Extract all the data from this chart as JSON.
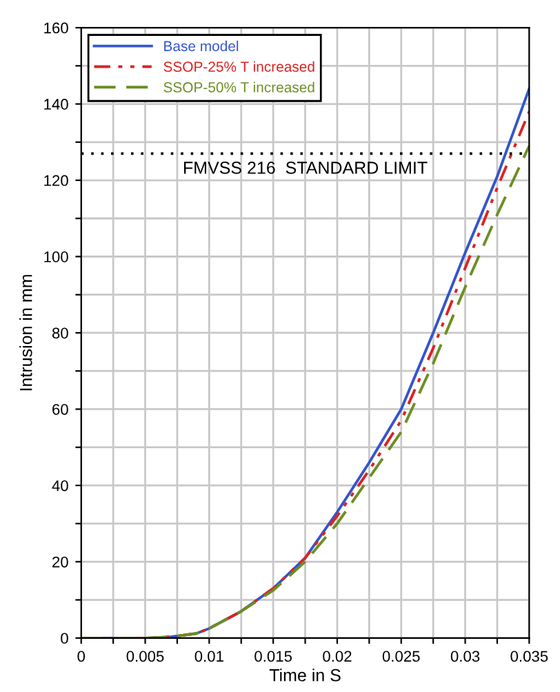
{
  "chart_data": {
    "type": "line",
    "xlabel": "Time in S",
    "ylabel": "Intrusion in mm",
    "x": [
      0,
      0.005,
      0.007,
      0.009,
      0.01,
      0.0125,
      0.015,
      0.0175,
      0.02,
      0.0225,
      0.025,
      0.0275,
      0.03,
      0.0325,
      0.035
    ],
    "series": [
      {
        "name": "Base model",
        "color": "#3355cc",
        "line_style": "solid",
        "values": [
          0,
          0,
          0.3,
          1.2,
          2.5,
          7,
          13,
          21,
          33,
          46,
          60,
          80,
          101,
          121,
          144
        ]
      },
      {
        "name": "SSOP-25% T increased",
        "color": "#dd2222",
        "line_style": "dashdot",
        "values": [
          0,
          0,
          0.3,
          1.2,
          2.5,
          7,
          13,
          21,
          32,
          44,
          57,
          76,
          97,
          118,
          138
        ]
      },
      {
        "name": "SSOP-50% T increased",
        "color": "#6b8e23",
        "line_style": "dashed",
        "values": [
          0,
          0,
          0.3,
          1.2,
          2.5,
          7,
          12.5,
          20,
          30,
          42,
          54,
          72,
          92,
          111,
          129
        ]
      }
    ],
    "xlim": [
      0,
      0.035
    ],
    "ylim": [
      0,
      160
    ],
    "xticks": [
      0,
      {
        "value": 0.0025,
        "label": null
      },
      0.005,
      {
        "value": 0.0075,
        "label": null
      },
      0.01,
      {
        "value": 0.0125,
        "label": null
      },
      0.015,
      {
        "value": 0.0175,
        "label": null
      },
      0.02,
      {
        "value": 0.0225,
        "label": null
      },
      0.025,
      {
        "value": 0.0275,
        "label": null
      },
      0.03,
      {
        "value": 0.0325,
        "label": null
      },
      0.035
    ],
    "yticks": [
      0,
      {
        "value": 10,
        "label": null
      },
      20,
      {
        "value": 30,
        "label": null
      },
      40,
      {
        "value": 50,
        "label": null
      },
      60,
      {
        "value": 70,
        "label": null
      },
      80,
      {
        "value": 90,
        "label": null
      },
      100,
      {
        "value": 110,
        "label": null
      },
      120,
      {
        "value": 130,
        "label": null
      },
      140,
      {
        "value": 150,
        "label": null
      },
      160
    ],
    "ref_lines": [
      {
        "axis": "y",
        "value": 127,
        "label": "FMVSS 216  STANDARD LIMIT",
        "color": "#000000",
        "line_style": "dotted"
      }
    ],
    "grid": true,
    "legend": "top left"
  }
}
